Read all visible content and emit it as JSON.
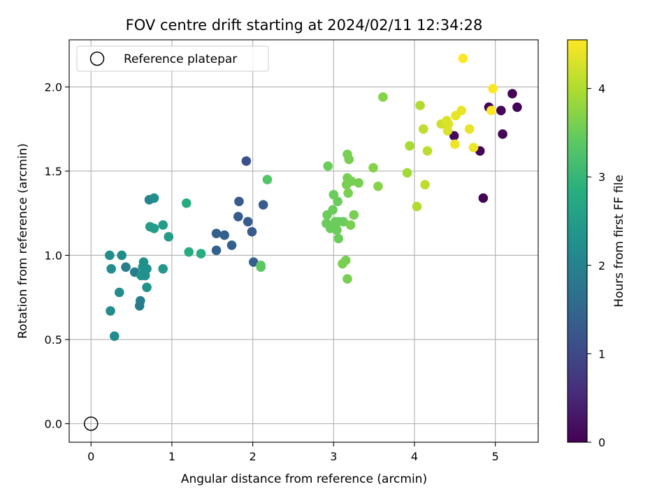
{
  "chart_data": {
    "type": "scatter",
    "title": "FOV centre drift starting at 2024/02/11 12:34:28",
    "xlabel": "Angular distance from reference (arcmin)",
    "ylabel": "Rotation from reference (arcmin)",
    "xlim": [
      -0.27,
      5.53
    ],
    "ylim": [
      -0.11,
      2.28
    ],
    "grid": true,
    "x_ticks": [
      0,
      1,
      2,
      3,
      4,
      5
    ],
    "x_tick_labels": [
      "0",
      "1",
      "2",
      "3",
      "4",
      "5"
    ],
    "y_ticks": [
      0.0,
      0.5,
      1.0,
      1.5,
      2.0
    ],
    "y_tick_labels": [
      "0.0",
      "0.5",
      "1.0",
      "1.5",
      "2.0"
    ],
    "legend": {
      "placement": "upper-left",
      "entries": [
        {
          "label": "Reference platepar",
          "marker": "open-circle",
          "x": 0,
          "y": 0
        }
      ]
    },
    "colorbar": {
      "label": "Hours from first FF file",
      "colormap": "viridis",
      "range": [
        0,
        4.55
      ],
      "ticks": [
        0,
        1,
        2,
        3,
        4
      ],
      "tick_labels": [
        "0",
        "1",
        "2",
        "3",
        "4"
      ]
    },
    "points": [
      [
        4.92,
        1.88,
        0.05
      ],
      [
        5.21,
        1.96,
        0.05
      ],
      [
        5.27,
        1.88,
        0.05
      ],
      [
        5.07,
        1.86,
        0.05
      ],
      [
        5.09,
        1.72,
        0.05
      ],
      [
        4.81,
        1.62,
        0.05
      ],
      [
        4.85,
        1.34,
        0.05
      ],
      [
        4.49,
        1.71,
        0.1
      ],
      [
        1.92,
        1.56,
        1.1
      ],
      [
        1.83,
        1.32,
        1.3
      ],
      [
        2.13,
        1.3,
        1.3
      ],
      [
        1.82,
        1.23,
        1.3
      ],
      [
        1.94,
        1.2,
        1.3
      ],
      [
        1.99,
        1.14,
        1.3
      ],
      [
        1.55,
        1.13,
        1.4
      ],
      [
        1.65,
        1.12,
        1.4
      ],
      [
        1.74,
        1.06,
        1.4
      ],
      [
        1.55,
        1.03,
        1.4
      ],
      [
        2.01,
        0.96,
        1.4
      ],
      [
        0.72,
        1.33,
        2.0
      ],
      [
        0.78,
        1.34,
        2.2
      ],
      [
        0.43,
        0.93,
        1.9
      ],
      [
        0.54,
        0.9,
        1.9
      ],
      [
        0.61,
        0.73,
        1.9
      ],
      [
        0.6,
        0.7,
        1.9
      ],
      [
        0.38,
        1.0,
        2.2
      ],
      [
        0.23,
        1.0,
        2.2
      ],
      [
        0.25,
        0.92,
        2.2
      ],
      [
        0.35,
        0.78,
        2.2
      ],
      [
        0.24,
        0.67,
        2.2
      ],
      [
        0.29,
        0.52,
        2.2
      ],
      [
        0.65,
        0.96,
        2.3
      ],
      [
        0.64,
        0.93,
        2.3
      ],
      [
        0.69,
        0.92,
        2.3
      ],
      [
        0.62,
        0.88,
        2.3
      ],
      [
        0.67,
        0.88,
        2.3
      ],
      [
        0.69,
        0.81,
        2.3
      ],
      [
        0.73,
        1.17,
        2.5
      ],
      [
        0.78,
        1.16,
        2.5
      ],
      [
        0.89,
        1.18,
        2.5
      ],
      [
        0.96,
        1.11,
        2.5
      ],
      [
        0.89,
        0.92,
        2.4
      ],
      [
        1.18,
        1.31,
        2.8
      ],
      [
        1.21,
        1.02,
        2.8
      ],
      [
        1.36,
        1.01,
        2.8
      ],
      [
        2.18,
        1.45,
        3.3
      ],
      [
        2.1,
        0.94,
        3.4
      ],
      [
        2.1,
        0.93,
        3.4
      ],
      [
        2.93,
        1.53,
        3.5
      ],
      [
        3.0,
        1.36,
        3.5
      ],
      [
        3.05,
        1.32,
        3.5
      ],
      [
        2.99,
        1.27,
        3.5
      ],
      [
        2.92,
        1.24,
        3.5
      ],
      [
        2.91,
        1.19,
        3.5
      ],
      [
        2.96,
        1.16,
        3.5
      ],
      [
        3.02,
        1.2,
        3.5
      ],
      [
        3.06,
        1.2,
        3.5
      ],
      [
        3.12,
        1.2,
        3.5
      ],
      [
        3.04,
        1.15,
        3.5
      ],
      [
        3.06,
        1.1,
        3.5
      ],
      [
        3.17,
        1.6,
        3.6
      ],
      [
        3.19,
        1.57,
        3.6
      ],
      [
        3.17,
        1.46,
        3.6
      ],
      [
        3.22,
        1.44,
        3.6
      ],
      [
        3.16,
        1.42,
        3.6
      ],
      [
        3.31,
        1.43,
        3.6
      ],
      [
        3.18,
        1.37,
        3.6
      ],
      [
        3.25,
        1.24,
        3.6
      ],
      [
        3.21,
        1.18,
        3.6
      ],
      [
        3.11,
        0.95,
        3.6
      ],
      [
        3.15,
        0.97,
        3.6
      ],
      [
        3.17,
        0.86,
        3.6
      ],
      [
        3.61,
        1.94,
        3.7
      ],
      [
        3.49,
        1.52,
        3.7
      ],
      [
        3.55,
        1.41,
        3.7
      ],
      [
        3.91,
        1.49,
        3.9
      ],
      [
        3.94,
        1.65,
        3.95
      ],
      [
        4.07,
        1.89,
        4.0
      ],
      [
        4.03,
        1.29,
        4.0
      ],
      [
        4.11,
        1.75,
        4.1
      ],
      [
        4.16,
        1.62,
        4.1
      ],
      [
        4.13,
        1.42,
        4.1
      ],
      [
        4.33,
        1.78,
        4.2
      ],
      [
        4.4,
        1.8,
        4.3
      ],
      [
        4.42,
        1.78,
        4.3
      ],
      [
        4.41,
        1.74,
        4.3
      ],
      [
        4.51,
        1.83,
        4.4
      ],
      [
        4.58,
        1.86,
        4.4
      ],
      [
        4.68,
        1.75,
        4.4
      ],
      [
        4.5,
        1.66,
        4.45
      ],
      [
        4.73,
        1.64,
        4.45
      ],
      [
        4.6,
        2.17,
        4.55
      ],
      [
        4.97,
        1.99,
        4.55
      ],
      [
        4.95,
        1.86,
        4.55
      ]
    ]
  }
}
